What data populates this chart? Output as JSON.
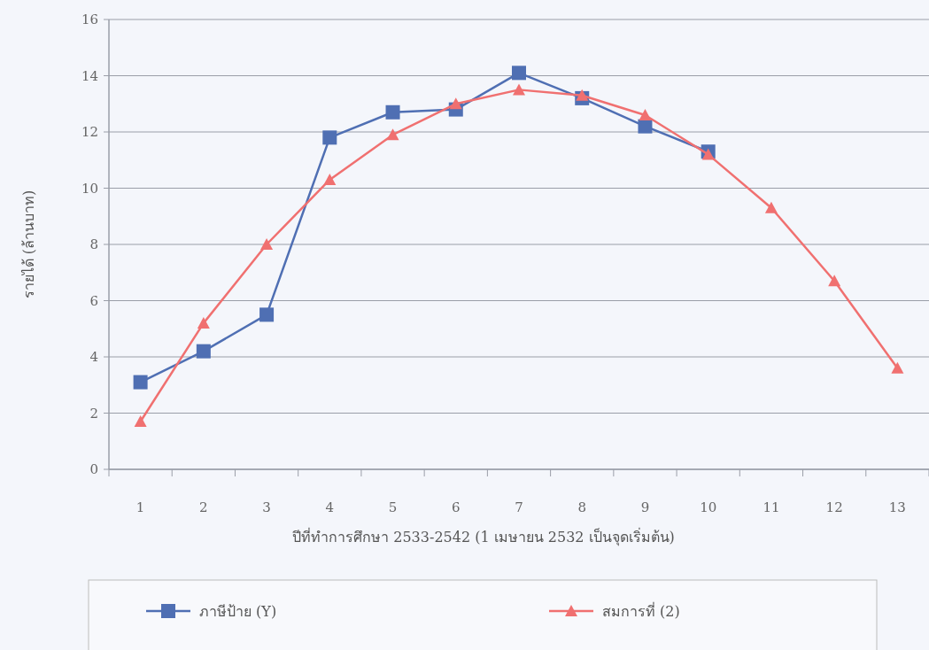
{
  "chart_data": {
    "type": "line",
    "xlabel": "ปีที่ทำการศึกษา 2533-2542 (1 เมษายน 2532 เป็นจุดเริ่มต้น)",
    "ylabel": "รายได้ (ล้านบาท)",
    "categories": [
      "1",
      "2",
      "3",
      "4",
      "5",
      "6",
      "7",
      "8",
      "9",
      "10",
      "11",
      "12",
      "13"
    ],
    "series": [
      {
        "name": "ภาษีป้าย (Y)",
        "color": "#4f6fb3",
        "marker": "square",
        "values": [
          3.1,
          4.2,
          5.5,
          11.8,
          12.7,
          12.8,
          14.1,
          13.2,
          12.2,
          11.3,
          null,
          null,
          null
        ]
      },
      {
        "name": "สมการที่ (2)",
        "color": "#f07070",
        "marker": "triangle",
        "values": [
          1.7,
          5.2,
          8.0,
          10.3,
          11.9,
          13.0,
          13.5,
          13.3,
          12.6,
          11.2,
          9.3,
          6.7,
          3.6
        ]
      }
    ],
    "ylim": [
      0,
      16
    ],
    "yticks": [
      0,
      2,
      4,
      6,
      8,
      10,
      12,
      14,
      16
    ],
    "grid": "y",
    "legend": "bottom"
  }
}
